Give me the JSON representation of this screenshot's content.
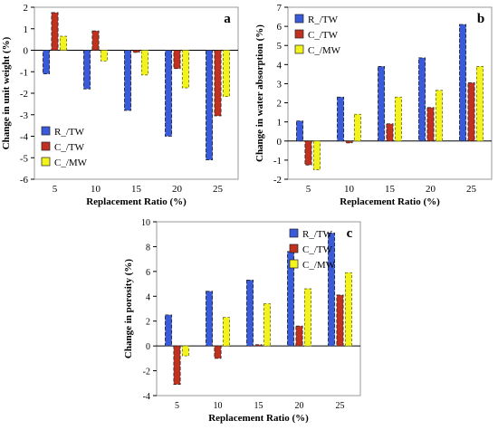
{
  "chart_data": [
    {
      "type": "bar",
      "panel_label": "a",
      "categories": [
        "5",
        "10",
        "15",
        "20",
        "25"
      ],
      "xlabel": "Replacement Ratio (%)",
      "ylabel": "Change in unit weight (%)",
      "ylim": [
        -6,
        2
      ],
      "yticks": [
        -6,
        -5,
        -4,
        -3,
        -2,
        -1,
        0,
        1,
        2
      ],
      "legend_position": "bottom-left",
      "series": [
        {
          "name": "R_/TW",
          "values": [
            -1.1,
            -1.8,
            -2.8,
            -4.0,
            -5.1
          ]
        },
        {
          "name": "C_/TW",
          "values": [
            1.75,
            0.9,
            -0.1,
            -0.85,
            -3.05
          ]
        },
        {
          "name": "C_/MW",
          "values": [
            0.65,
            -0.5,
            -1.15,
            -1.75,
            -2.15
          ]
        }
      ]
    },
    {
      "type": "bar",
      "panel_label": "b",
      "categories": [
        "5",
        "10",
        "15",
        "20",
        "25"
      ],
      "xlabel": "Replacement Ratio (%)",
      "ylabel": "Change in water absorption (%)",
      "ylim": [
        -2,
        7
      ],
      "yticks": [
        -2,
        -1,
        0,
        1,
        2,
        3,
        4,
        5,
        6,
        7
      ],
      "legend_position": "top-left",
      "series": [
        {
          "name": "R_/TW",
          "values": [
            1.05,
            2.3,
            3.9,
            4.35,
            6.1
          ]
        },
        {
          "name": "C_/TW",
          "values": [
            -1.25,
            -0.1,
            0.9,
            1.75,
            3.05
          ]
        },
        {
          "name": "C_/MW",
          "values": [
            -1.5,
            1.4,
            2.3,
            2.65,
            3.9
          ]
        }
      ]
    },
    {
      "type": "bar",
      "panel_label": "c",
      "categories": [
        "5",
        "10",
        "15",
        "20",
        "25"
      ],
      "xlabel": "Replacement Ratio (%)",
      "ylabel": "Change in porosity (%)",
      "ylim": [
        -4,
        10
      ],
      "yticks": [
        -4,
        -2,
        0,
        2,
        4,
        6,
        8,
        10
      ],
      "legend_position": "top-right",
      "series": [
        {
          "name": "R_/TW",
          "values": [
            2.5,
            4.4,
            5.3,
            7.6,
            9.1
          ]
        },
        {
          "name": "C_/TW",
          "values": [
            -3.1,
            -1.0,
            0.1,
            1.6,
            4.1
          ]
        },
        {
          "name": "C_/MW",
          "values": [
            -0.8,
            2.3,
            3.4,
            4.6,
            5.9
          ]
        }
      ]
    }
  ],
  "colors": {
    "series": [
      "#3a5bd9",
      "#c0321f",
      "#f2f21c"
    ],
    "axis": "#000000",
    "border": "#999999"
  }
}
